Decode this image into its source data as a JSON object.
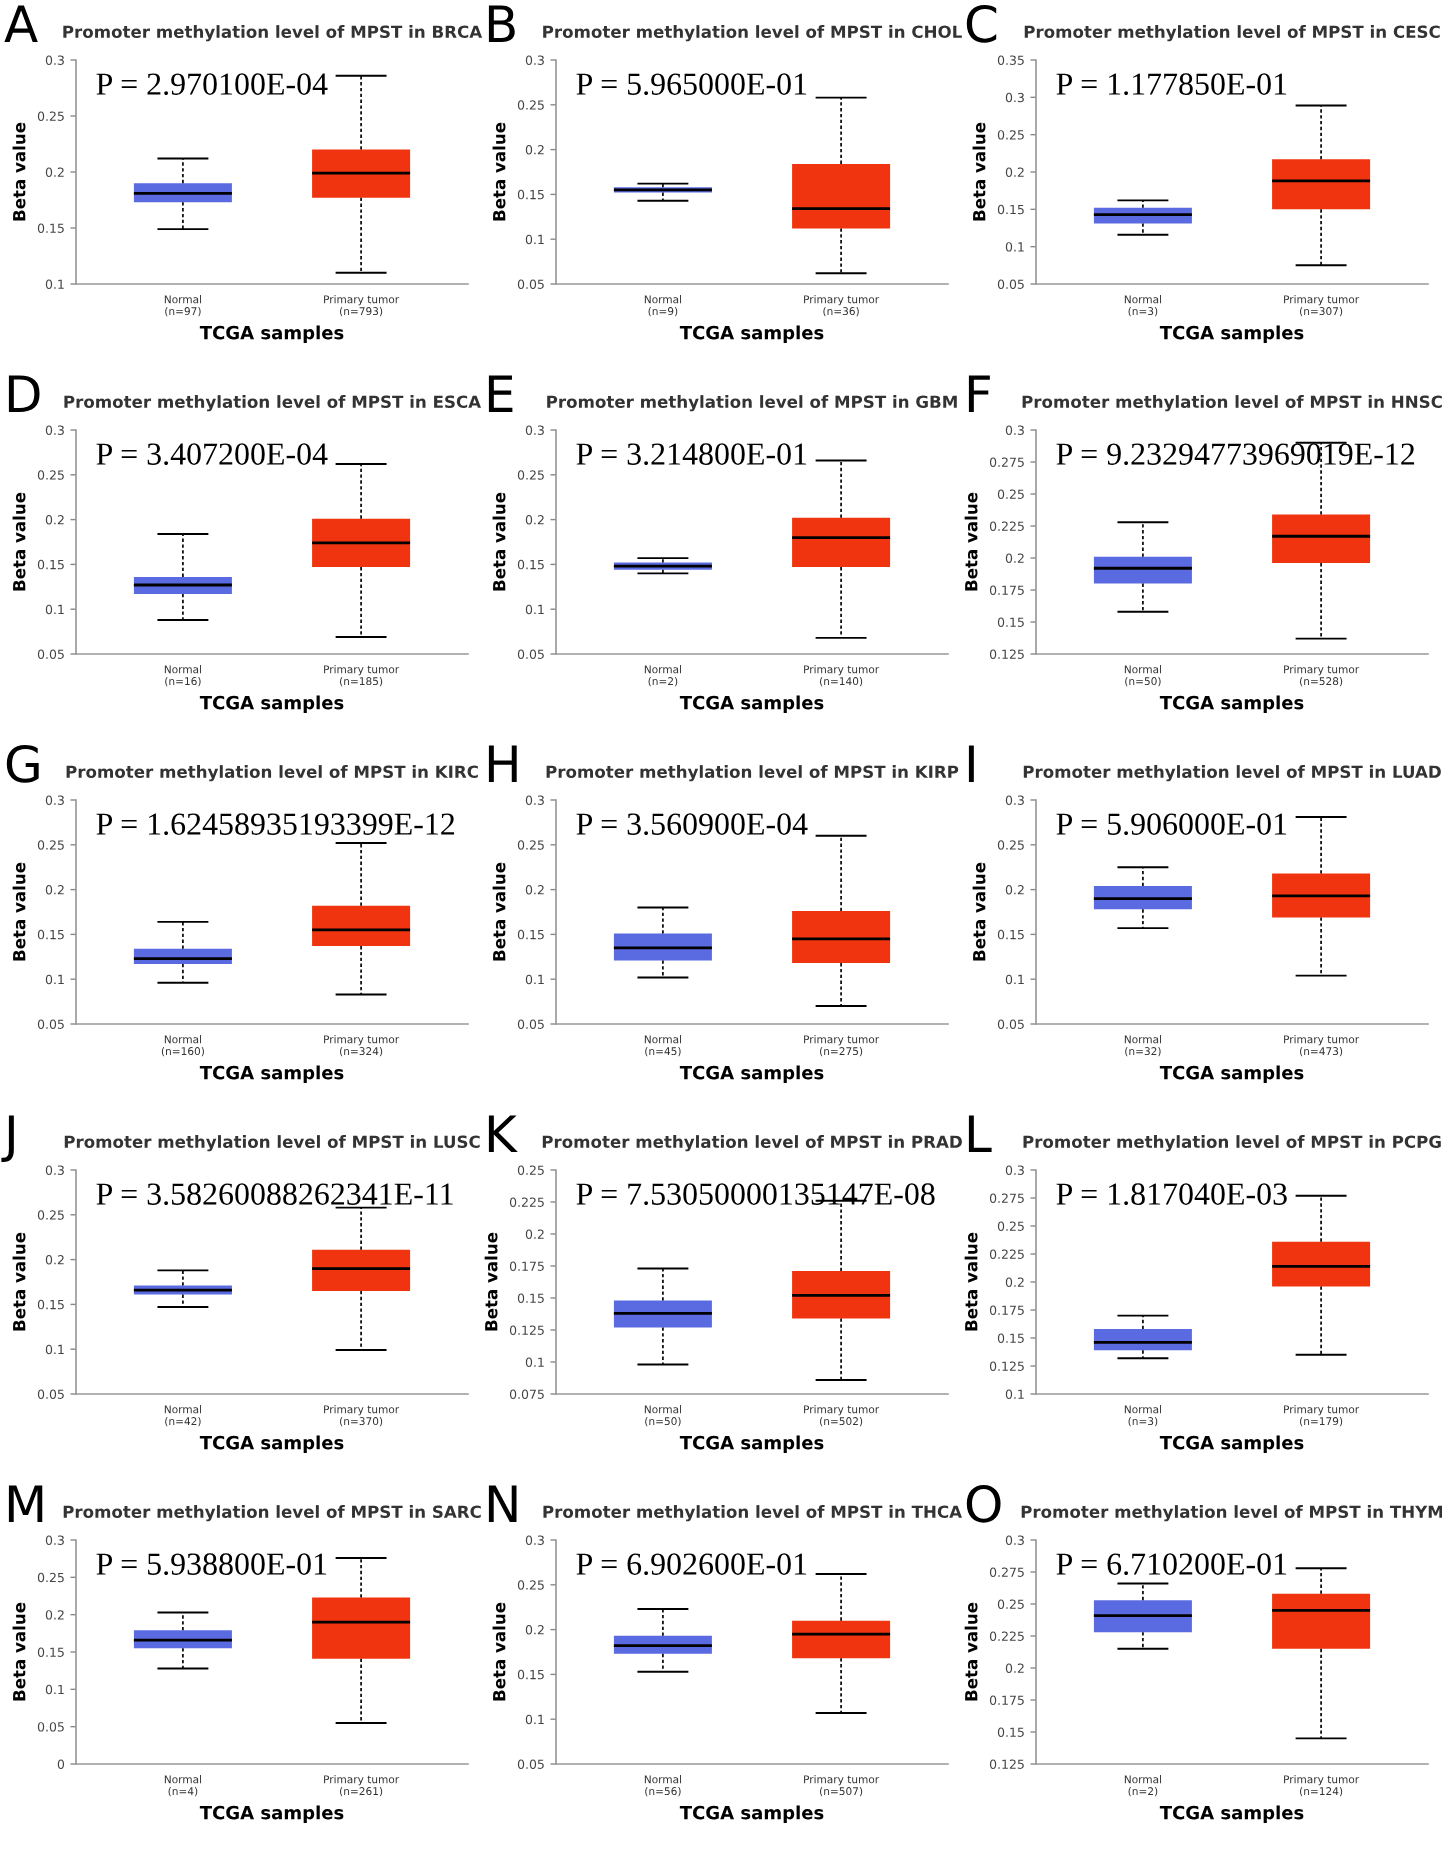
{
  "chart_data": [
    {
      "type": "box",
      "title": "Promoter methylation level of MPST in BRCA",
      "xlabel": "TCGA samples",
      "ylabel": "Beta value",
      "categories": [
        "Normal\n(n=97)",
        "Primary tumor\n(n=793)"
      ],
      "colors": [
        "#5a6ae0",
        "#f0340f"
      ],
      "ylim": [
        0.1,
        0.3
      ],
      "yticks": [
        0.1,
        0.15,
        0.2,
        0.25,
        0.3
      ],
      "annotations": [
        "A",
        "P = 2.970100E-04"
      ],
      "boxes": [
        {
          "low": 0.149,
          "q1": 0.173,
          "median": 0.181,
          "q3": 0.19,
          "high": 0.212
        },
        {
          "low": 0.11,
          "q1": 0.177,
          "median": 0.199,
          "q3": 0.22,
          "high": 0.286
        }
      ]
    },
    {
      "type": "box",
      "title": "Promoter methylation level of MPST in CHOL",
      "xlabel": "TCGA samples",
      "ylabel": "Beta value",
      "categories": [
        "Normal\n(n=9)",
        "Primary tumor\n(n=36)"
      ],
      "colors": [
        "#5a6ae0",
        "#f0340f"
      ],
      "ylim": [
        0.05,
        0.3
      ],
      "yticks": [
        0.05,
        0.1,
        0.15,
        0.2,
        0.25,
        0.3
      ],
      "annotations": [
        "B",
        "P = 5.965000E-01"
      ],
      "boxes": [
        {
          "low": 0.143,
          "q1": 0.152,
          "median": 0.155,
          "q3": 0.158,
          "high": 0.162
        },
        {
          "low": 0.062,
          "q1": 0.112,
          "median": 0.134,
          "q3": 0.184,
          "high": 0.258
        }
      ]
    },
    {
      "type": "box",
      "title": "Promoter methylation level of MPST in CESC",
      "xlabel": "TCGA samples",
      "ylabel": "Beta value",
      "categories": [
        "Normal\n(n=3)",
        "Primary tumor\n(n=307)"
      ],
      "colors": [
        "#5a6ae0",
        "#f0340f"
      ],
      "ylim": [
        0.05,
        0.35
      ],
      "yticks": [
        0.05,
        0.1,
        0.15,
        0.2,
        0.25,
        0.3,
        0.35
      ],
      "annotations": [
        "C",
        "P = 1.177850E-01"
      ],
      "boxes": [
        {
          "low": 0.116,
          "q1": 0.131,
          "median": 0.143,
          "q3": 0.152,
          "high": 0.162
        },
        {
          "low": 0.075,
          "q1": 0.15,
          "median": 0.188,
          "q3": 0.217,
          "high": 0.289
        }
      ]
    },
    {
      "type": "box",
      "title": "Promoter methylation level of MPST in ESCA",
      "xlabel": "TCGA samples",
      "ylabel": "Beta value",
      "categories": [
        "Normal\n(n=16)",
        "Primary tumor\n(n=185)"
      ],
      "colors": [
        "#5a6ae0",
        "#f0340f"
      ],
      "ylim": [
        0.05,
        0.3
      ],
      "yticks": [
        0.05,
        0.1,
        0.15,
        0.2,
        0.25,
        0.3
      ],
      "annotations": [
        "D",
        "P = 3.407200E-04"
      ],
      "boxes": [
        {
          "low": 0.088,
          "q1": 0.117,
          "median": 0.127,
          "q3": 0.136,
          "high": 0.184
        },
        {
          "low": 0.069,
          "q1": 0.147,
          "median": 0.174,
          "q3": 0.201,
          "high": 0.262
        }
      ]
    },
    {
      "type": "box",
      "title": "Promoter methylation level of MPST in GBM",
      "xlabel": "TCGA samples",
      "ylabel": "Beta value",
      "categories": [
        "Normal\n(n=2)",
        "Primary tumor\n(n=140)"
      ],
      "colors": [
        "#5a6ae0",
        "#f0340f"
      ],
      "ylim": [
        0.05,
        0.3
      ],
      "yticks": [
        0.05,
        0.1,
        0.15,
        0.2,
        0.25,
        0.3
      ],
      "annotations": [
        "E",
        "P = 3.214800E-01"
      ],
      "boxes": [
        {
          "low": 0.14,
          "q1": 0.144,
          "median": 0.148,
          "q3": 0.152,
          "high": 0.157
        },
        {
          "low": 0.068,
          "q1": 0.147,
          "median": 0.18,
          "q3": 0.202,
          "high": 0.266
        }
      ]
    },
    {
      "type": "box",
      "title": "Promoter methylation level of MPST in HNSC",
      "xlabel": "TCGA samples",
      "ylabel": "Beta value",
      "categories": [
        "Normal\n(n=50)",
        "Primary tumor\n(n=528)"
      ],
      "colors": [
        "#5a6ae0",
        "#f0340f"
      ],
      "ylim": [
        0.125,
        0.3
      ],
      "yticks": [
        0.125,
        0.15,
        0.175,
        0.2,
        0.225,
        0.25,
        0.275,
        0.3
      ],
      "annotations": [
        "F",
        "P = 9.23294773969019E-12"
      ],
      "boxes": [
        {
          "low": 0.158,
          "q1": 0.18,
          "median": 0.192,
          "q3": 0.201,
          "high": 0.228
        },
        {
          "low": 0.137,
          "q1": 0.196,
          "median": 0.217,
          "q3": 0.234,
          "high": 0.29
        }
      ]
    },
    {
      "type": "box",
      "title": "Promoter methylation level of MPST in KIRC",
      "xlabel": "TCGA samples",
      "ylabel": "Beta value",
      "categories": [
        "Normal\n(n=160)",
        "Primary tumor\n(n=324)"
      ],
      "colors": [
        "#5a6ae0",
        "#f0340f"
      ],
      "ylim": [
        0.05,
        0.3
      ],
      "yticks": [
        0.05,
        0.1,
        0.15,
        0.2,
        0.25,
        0.3
      ],
      "annotations": [
        "G",
        "P = 1.62458935193399E-12"
      ],
      "boxes": [
        {
          "low": 0.096,
          "q1": 0.117,
          "median": 0.123,
          "q3": 0.134,
          "high": 0.164
        },
        {
          "low": 0.083,
          "q1": 0.137,
          "median": 0.155,
          "q3": 0.182,
          "high": 0.252
        }
      ]
    },
    {
      "type": "box",
      "title": "Promoter methylation level of MPST in KIRP",
      "xlabel": "TCGA samples",
      "ylabel": "Beta value",
      "categories": [
        "Normal\n(n=45)",
        "Primary tumor\n(n=275)"
      ],
      "colors": [
        "#5a6ae0",
        "#f0340f"
      ],
      "ylim": [
        0.05,
        0.3
      ],
      "yticks": [
        0.05,
        0.1,
        0.15,
        0.2,
        0.25,
        0.3
      ],
      "annotations": [
        "H",
        "P = 3.560900E-04"
      ],
      "boxes": [
        {
          "low": 0.102,
          "q1": 0.121,
          "median": 0.135,
          "q3": 0.151,
          "high": 0.18
        },
        {
          "low": 0.07,
          "q1": 0.118,
          "median": 0.145,
          "q3": 0.176,
          "high": 0.26
        }
      ]
    },
    {
      "type": "box",
      "title": "Promoter methylation level of MPST in LUAD",
      "xlabel": "TCGA samples",
      "ylabel": "Beta value",
      "categories": [
        "Normal\n(n=32)",
        "Primary tumor\n(n=473)"
      ],
      "colors": [
        "#5a6ae0",
        "#f0340f"
      ],
      "ylim": [
        0.05,
        0.3
      ],
      "yticks": [
        0.05,
        0.1,
        0.15,
        0.2,
        0.25,
        0.3
      ],
      "annotations": [
        "I",
        "P = 5.906000E-01"
      ],
      "boxes": [
        {
          "low": 0.157,
          "q1": 0.178,
          "median": 0.19,
          "q3": 0.204,
          "high": 0.225
        },
        {
          "low": 0.104,
          "q1": 0.169,
          "median": 0.193,
          "q3": 0.218,
          "high": 0.281
        }
      ]
    },
    {
      "type": "box",
      "title": "Promoter methylation level of MPST in LUSC",
      "xlabel": "TCGA samples",
      "ylabel": "Beta value",
      "categories": [
        "Normal\n(n=42)",
        "Primary tumor\n(n=370)"
      ],
      "colors": [
        "#5a6ae0",
        "#f0340f"
      ],
      "ylim": [
        0.05,
        0.3
      ],
      "yticks": [
        0.05,
        0.1,
        0.15,
        0.2,
        0.25,
        0.3
      ],
      "annotations": [
        "J",
        "P = 3.58260088262341E-11"
      ],
      "boxes": [
        {
          "low": 0.147,
          "q1": 0.161,
          "median": 0.166,
          "q3": 0.171,
          "high": 0.188
        },
        {
          "low": 0.099,
          "q1": 0.165,
          "median": 0.19,
          "q3": 0.211,
          "high": 0.258
        }
      ]
    },
    {
      "type": "box",
      "title": "Promoter methylation level of MPST in PRAD",
      "xlabel": "TCGA samples",
      "ylabel": "Beta value",
      "categories": [
        "Normal\n(n=50)",
        "Primary tumor\n(n=502)"
      ],
      "colors": [
        "#5a6ae0",
        "#f0340f"
      ],
      "ylim": [
        0.075,
        0.25
      ],
      "yticks": [
        0.075,
        0.1,
        0.125,
        0.15,
        0.175,
        0.2,
        0.225,
        0.25
      ],
      "annotations": [
        "K",
        "P = 7.53050000135147E-08"
      ],
      "boxes": [
        {
          "low": 0.098,
          "q1": 0.127,
          "median": 0.138,
          "q3": 0.148,
          "high": 0.173
        },
        {
          "low": 0.086,
          "q1": 0.134,
          "median": 0.152,
          "q3": 0.171,
          "high": 0.226
        }
      ]
    },
    {
      "type": "box",
      "title": "Promoter methylation level of MPST in PCPG",
      "xlabel": "TCGA samples",
      "ylabel": "Beta value",
      "categories": [
        "Normal\n(n=3)",
        "Primary tumor\n(n=179)"
      ],
      "colors": [
        "#5a6ae0",
        "#f0340f"
      ],
      "ylim": [
        0.1,
        0.3
      ],
      "yticks": [
        0.1,
        0.125,
        0.15,
        0.175,
        0.2,
        0.225,
        0.25,
        0.275,
        0.3
      ],
      "annotations": [
        "L",
        "P = 1.817040E-03"
      ],
      "boxes": [
        {
          "low": 0.132,
          "q1": 0.139,
          "median": 0.146,
          "q3": 0.158,
          "high": 0.17
        },
        {
          "low": 0.135,
          "q1": 0.196,
          "median": 0.214,
          "q3": 0.236,
          "high": 0.277
        }
      ]
    },
    {
      "type": "box",
      "title": "Promoter methylation level of MPST in SARC",
      "xlabel": "TCGA samples",
      "ylabel": "Beta value",
      "categories": [
        "Normal\n(n=4)",
        "Primary tumor\n(n=261)"
      ],
      "colors": [
        "#5a6ae0",
        "#f0340f"
      ],
      "ylim": [
        0,
        0.3
      ],
      "yticks": [
        0,
        0.05,
        0.1,
        0.15,
        0.2,
        0.25,
        0.3
      ],
      "annotations": [
        "M",
        "P = 5.938800E-01"
      ],
      "boxes": [
        {
          "low": 0.128,
          "q1": 0.155,
          "median": 0.166,
          "q3": 0.179,
          "high": 0.203
        },
        {
          "low": 0.055,
          "q1": 0.141,
          "median": 0.19,
          "q3": 0.223,
          "high": 0.276
        }
      ]
    },
    {
      "type": "box",
      "title": "Promoter methylation level of MPST in THCA",
      "xlabel": "TCGA samples",
      "ylabel": "Beta value",
      "categories": [
        "Normal\n(n=56)",
        "Primary tumor\n(n=507)"
      ],
      "colors": [
        "#5a6ae0",
        "#f0340f"
      ],
      "ylim": [
        0.05,
        0.3
      ],
      "yticks": [
        0.05,
        0.1,
        0.15,
        0.2,
        0.25,
        0.3
      ],
      "annotations": [
        "N",
        "P = 6.902600E-01"
      ],
      "boxes": [
        {
          "low": 0.153,
          "q1": 0.173,
          "median": 0.182,
          "q3": 0.193,
          "high": 0.223
        },
        {
          "low": 0.107,
          "q1": 0.168,
          "median": 0.195,
          "q3": 0.21,
          "high": 0.262
        }
      ]
    },
    {
      "type": "box",
      "title": "Promoter methylation level of MPST in THYM",
      "xlabel": "TCGA samples",
      "ylabel": "Beta value",
      "categories": [
        "Normal\n(n=2)",
        "Primary tumor\n(n=124)"
      ],
      "colors": [
        "#5a6ae0",
        "#f0340f"
      ],
      "ylim": [
        0.125,
        0.3
      ],
      "yticks": [
        0.125,
        0.15,
        0.175,
        0.2,
        0.225,
        0.25,
        0.275,
        0.3
      ],
      "annotations": [
        "O",
        "P = 6.710200E-01"
      ],
      "boxes": [
        {
          "low": 0.215,
          "q1": 0.228,
          "median": 0.241,
          "q3": 0.253,
          "high": 0.266
        },
        {
          "low": 0.145,
          "q1": 0.215,
          "median": 0.245,
          "q3": 0.258,
          "high": 0.278
        }
      ]
    }
  ]
}
